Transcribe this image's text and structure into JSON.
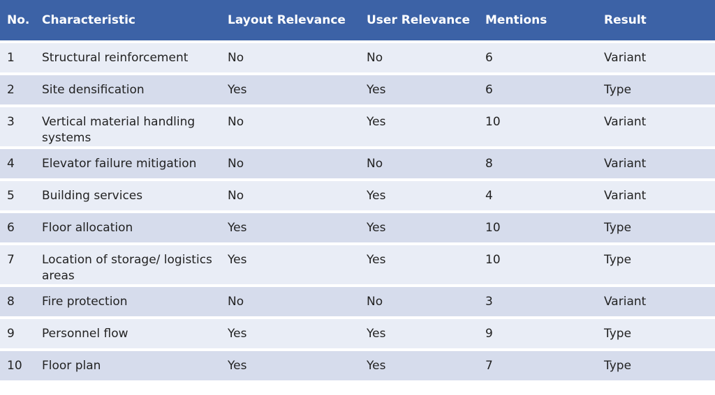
{
  "table": {
    "header": [
      "No.",
      "Characteristic",
      "Layout Relevance",
      "User Relevance",
      "Mentions",
      "Result"
    ],
    "rows": [
      [
        1,
        "Structural reinforcement",
        "No",
        "No",
        6,
        "Variant"
      ],
      [
        2,
        "Site densification",
        "Yes",
        "Yes",
        6,
        "Type"
      ],
      [
        3,
        "Vertical material handling systems",
        "No",
        "Yes",
        10,
        "Variant"
      ],
      [
        4,
        "Elevator failure mitigation",
        "No",
        "No",
        8,
        "Variant"
      ],
      [
        5,
        "Building services",
        "No",
        "Yes",
        4,
        "Variant"
      ],
      [
        6,
        "Floor allocation",
        "Yes",
        "Yes",
        10,
        "Type"
      ],
      [
        7,
        "Location of storage/ logistics areas",
        "Yes",
        "Yes",
        10,
        "Type"
      ],
      [
        8,
        "Fire protection",
        "No",
        "No",
        3,
        "Variant"
      ],
      [
        9,
        "Personnel flow",
        "Yes",
        "Yes",
        9,
        "Type"
      ],
      [
        10,
        "Floor plan",
        "Yes",
        "Yes",
        7,
        "Type"
      ]
    ]
  }
}
